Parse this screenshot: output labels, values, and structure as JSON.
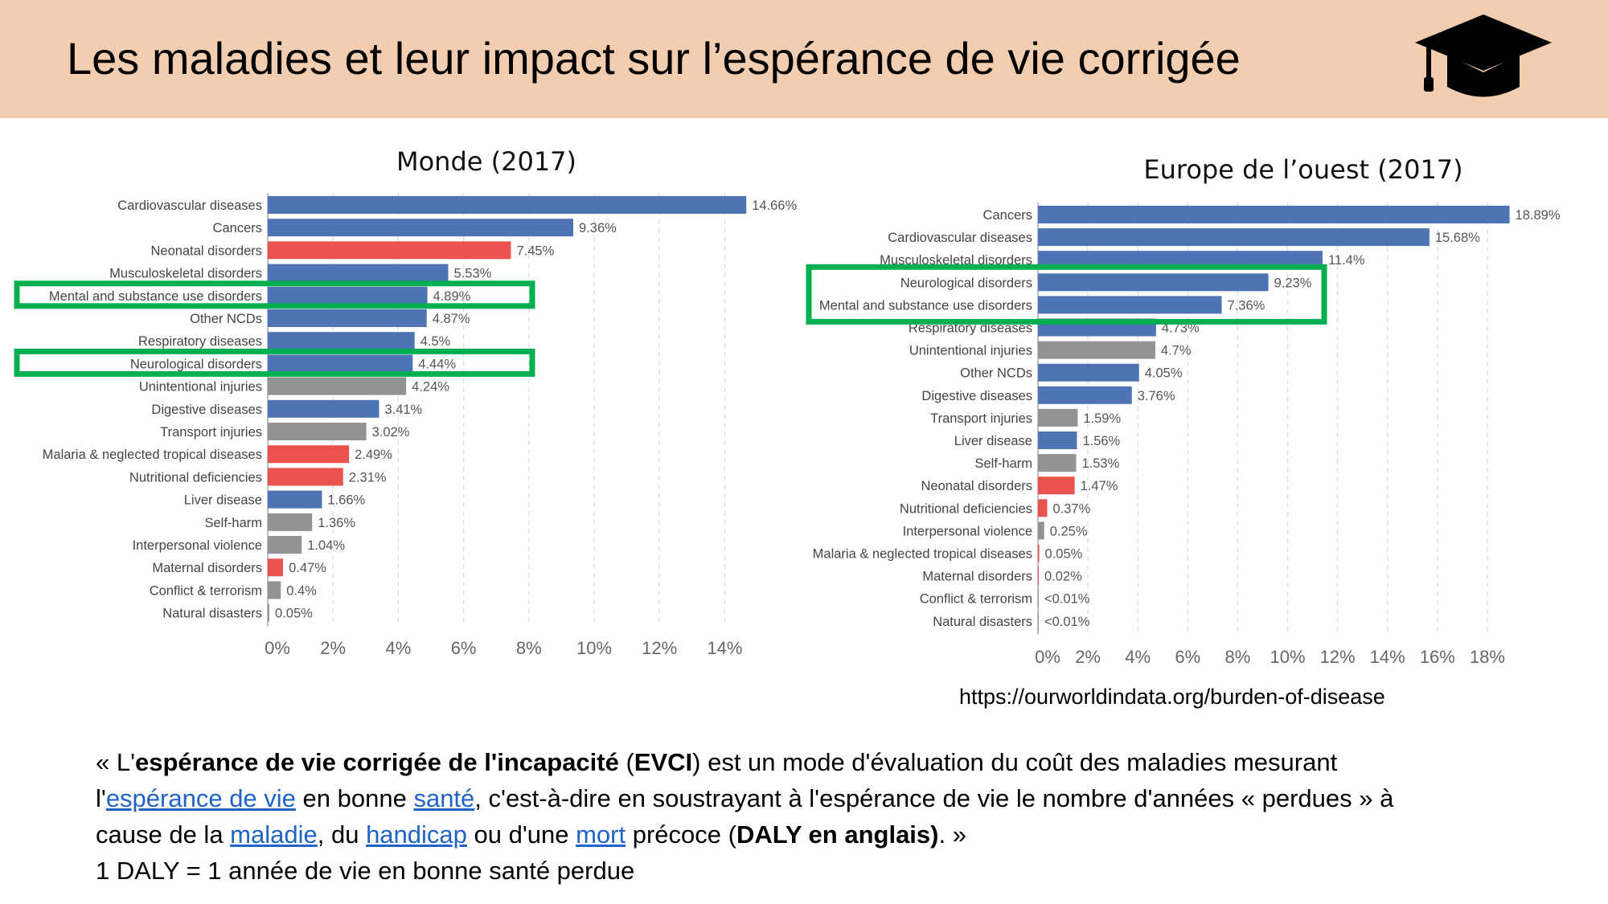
{
  "header": {
    "title": "Les maladies et leur impact sur l’espérance de vie corrigée",
    "icon": "graduation-cap-icon",
    "background": "#f2cdb0"
  },
  "colors": {
    "blue": "#4f74b6",
    "red": "#ea524d",
    "gray": "#939393",
    "highlight": "#00b050"
  },
  "chart_data": [
    {
      "type": "bar",
      "orientation": "horizontal",
      "title": "Monde (2017)",
      "xlim": [
        0,
        14
      ],
      "xticks": [
        "0%",
        "2%",
        "4%",
        "6%",
        "8%",
        "10%",
        "12%",
        "14%"
      ],
      "grid": true,
      "categories": [
        "Cardiovascular diseases",
        "Cancers",
        "Neonatal disorders",
        "Musculoskeletal disorders",
        "Mental and substance use disorders",
        "Other NCDs",
        "Respiratory diseases",
        "Neurological disorders",
        "Unintentional injuries",
        "Digestive diseases",
        "Transport injuries",
        "Malaria & neglected tropical diseases",
        "Nutritional deficiencies",
        "Liver disease",
        "Self-harm",
        "Interpersonal violence",
        "Maternal disorders",
        "Conflict & terrorism",
        "Natural disasters"
      ],
      "values": [
        14.66,
        9.36,
        7.45,
        5.53,
        4.89,
        4.87,
        4.5,
        4.44,
        4.24,
        3.41,
        3.02,
        2.49,
        2.31,
        1.66,
        1.36,
        1.04,
        0.47,
        0.4,
        0.05
      ],
      "labels": [
        "14.66%",
        "9.36%",
        "7.45%",
        "5.53%",
        "4.89%",
        "4.87%",
        "4.5%",
        "4.44%",
        "4.24%",
        "3.41%",
        "3.02%",
        "2.49%",
        "2.31%",
        "1.66%",
        "1.36%",
        "1.04%",
        "0.47%",
        "0.4%",
        "0.05%"
      ],
      "bar_colors": [
        "blue",
        "blue",
        "red",
        "blue",
        "blue",
        "blue",
        "blue",
        "blue",
        "gray",
        "blue",
        "gray",
        "red",
        "red",
        "blue",
        "gray",
        "gray",
        "red",
        "gray",
        "gray"
      ],
      "highlighted": [
        "Mental and substance use disorders",
        "Neurological disorders"
      ]
    },
    {
      "type": "bar",
      "orientation": "horizontal",
      "title": "Europe de l’ouest (2017)",
      "xlim": [
        0,
        18
      ],
      "xticks": [
        "0%",
        "2%",
        "4%",
        "6%",
        "8%",
        "10%",
        "12%",
        "14%",
        "16%",
        "18%"
      ],
      "grid": true,
      "categories": [
        "Cancers",
        "Cardiovascular diseases",
        "Musculoskeletal disorders",
        "Neurological disorders",
        "Mental and substance use disorders",
        "Respiratory diseases",
        "Unintentional injuries",
        "Other NCDs",
        "Digestive diseases",
        "Transport injuries",
        "Liver disease",
        "Self-harm",
        "Neonatal disorders",
        "Nutritional deficiencies",
        "Interpersonal violence",
        "Malaria & neglected tropical diseases",
        "Maternal disorders",
        "Conflict & terrorism",
        "Natural disasters"
      ],
      "values": [
        18.89,
        15.68,
        11.4,
        9.23,
        7.36,
        4.73,
        4.7,
        4.05,
        3.76,
        1.59,
        1.56,
        1.53,
        1.47,
        0.37,
        0.25,
        0.05,
        0.02,
        0.005,
        0.005
      ],
      "labels": [
        "18.89%",
        "15.68%",
        "11.4%",
        "9.23%",
        "7.36%",
        "4.73%",
        "4.7%",
        "4.05%",
        "3.76%",
        "1.59%",
        "1.56%",
        "1.53%",
        "1.47%",
        "0.37%",
        "0.25%",
        "0.05%",
        "0.02%",
        "<0.01%",
        "<0.01%"
      ],
      "bar_colors": [
        "blue",
        "blue",
        "blue",
        "blue",
        "blue",
        "blue",
        "gray",
        "blue",
        "blue",
        "gray",
        "blue",
        "gray",
        "red",
        "red",
        "gray",
        "red",
        "red",
        "gray",
        "gray"
      ],
      "highlighted": [
        "Neurological disorders",
        "Mental and substance use disorders"
      ]
    }
  ],
  "source_url": "https://ourworldindata.org/burden-of-disease",
  "definition": {
    "lines": [
      [
        {
          "t": "« L'"
        },
        {
          "t": "espérance de vie corrigée de l'incapacité",
          "b": true
        },
        {
          "t": " ("
        },
        {
          "t": "EVCI",
          "b": true
        },
        {
          "t": ") est un mode d'évaluation du coût des maladies mesurant"
        }
      ],
      [
        {
          "t": "l'"
        },
        {
          "t": "espérance de vie",
          "link": true
        },
        {
          "t": " en bonne "
        },
        {
          "t": "santé",
          "link": true
        },
        {
          "t": ", c'est-à-dire en soustrayant à l'espérance de vie le nombre d'années « perdues » à"
        }
      ],
      [
        {
          "t": "cause de la "
        },
        {
          "t": "maladie",
          "link": true
        },
        {
          "t": ", du "
        },
        {
          "t": "handicap",
          "link": true
        },
        {
          "t": " ou d'une "
        },
        {
          "t": "mort",
          "link": true
        },
        {
          "t": " précoce ("
        },
        {
          "t": "DALY en anglais)",
          "b": true
        },
        {
          "t": ". »"
        }
      ],
      [
        {
          "t": "1 DALY = 1 année de vie en bonne santé perdue"
        }
      ]
    ]
  }
}
